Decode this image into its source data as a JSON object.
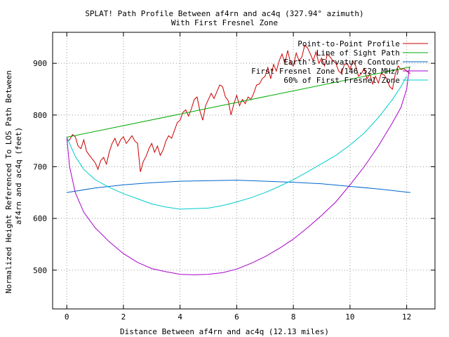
{
  "chart_data": {
    "type": "line",
    "title": "SPLAT! Path Profile Between af4rn and ac4q (327.94° azimuth)",
    "subtitle": "With First Fresnel Zone",
    "xlabel": "Distance Between af4rn and ac4q (12.13 miles)",
    "ylabel_lines": [
      "Normalized Height Referenced To LOS Path Between",
      "af4rn and ac4q (feet)"
    ],
    "xlim": [
      -0.5,
      13
    ],
    "ylim": [
      425,
      960
    ],
    "xticks": [
      0,
      2,
      4,
      6,
      8,
      10,
      12
    ],
    "yticks": [
      500,
      600,
      700,
      800,
      900
    ],
    "grid": true,
    "legend_position": "top-right",
    "series": [
      {
        "name": "Point-to-Point Profile",
        "color": "#cc0000",
        "x": [
          0.0,
          0.1,
          0.2,
          0.3,
          0.4,
          0.5,
          0.6,
          0.7,
          0.8,
          0.9,
          1.0,
          1.1,
          1.2,
          1.3,
          1.4,
          1.5,
          1.6,
          1.7,
          1.8,
          1.9,
          2.0,
          2.1,
          2.2,
          2.3,
          2.4,
          2.5,
          2.6,
          2.7,
          2.8,
          2.9,
          3.0,
          3.1,
          3.2,
          3.3,
          3.4,
          3.5,
          3.6,
          3.7,
          3.8,
          3.9,
          4.0,
          4.1,
          4.2,
          4.3,
          4.4,
          4.5,
          4.6,
          4.7,
          4.8,
          4.9,
          5.0,
          5.1,
          5.2,
          5.3,
          5.4,
          5.5,
          5.6,
          5.7,
          5.8,
          5.9,
          6.0,
          6.1,
          6.2,
          6.3,
          6.4,
          6.5,
          6.6,
          6.7,
          6.8,
          6.9,
          7.0,
          7.1,
          7.2,
          7.3,
          7.4,
          7.5,
          7.6,
          7.7,
          7.8,
          7.9,
          8.0,
          8.1,
          8.2,
          8.3,
          8.4,
          8.5,
          8.6,
          8.7,
          8.8,
          8.9,
          9.0,
          9.1,
          9.2,
          9.3,
          9.4,
          9.5,
          9.6,
          9.7,
          9.8,
          9.9,
          10.0,
          10.1,
          10.2,
          10.3,
          10.4,
          10.5,
          10.6,
          10.7,
          10.8,
          10.9,
          11.0,
          11.1,
          11.2,
          11.3,
          11.4,
          11.5,
          11.6,
          11.7,
          11.8,
          11.9,
          12.0,
          12.13
        ],
        "values": [
          750,
          752,
          762,
          758,
          740,
          735,
          752,
          730,
          722,
          715,
          708,
          695,
          712,
          718,
          705,
          728,
          745,
          755,
          740,
          752,
          758,
          745,
          752,
          760,
          750,
          745,
          690,
          710,
          720,
          735,
          745,
          728,
          740,
          722,
          732,
          750,
          760,
          755,
          770,
          785,
          790,
          805,
          810,
          798,
          812,
          830,
          835,
          808,
          790,
          818,
          830,
          842,
          832,
          845,
          858,
          855,
          835,
          828,
          800,
          822,
          838,
          818,
          830,
          822,
          835,
          830,
          842,
          858,
          860,
          870,
          875,
          892,
          870,
          898,
          885,
          905,
          918,
          900,
          925,
          900,
          895,
          920,
          905,
          912,
          935,
          930,
          918,
          905,
          922,
          900,
          910,
          895,
          918,
          912,
          905,
          900,
          885,
          880,
          898,
          900,
          888,
          905,
          895,
          875,
          880,
          890,
          870,
          880,
          860,
          875,
          862,
          880,
          878,
          870,
          855,
          850,
          880,
          895,
          888,
          890,
          885,
          880
        ]
      },
      {
        "name": "Line of Sight Path",
        "color": "#00aa00",
        "x": [
          0,
          12.13
        ],
        "values": [
          757,
          893
        ]
      },
      {
        "name": "Earth's Curvature Contour",
        "color": "#0066cc",
        "x": [
          0,
          1,
          2,
          3,
          4,
          5,
          6,
          7,
          8,
          9,
          10,
          11,
          12.13
        ],
        "values": [
          650,
          659,
          665,
          669,
          672,
          673,
          674,
          672,
          670,
          667,
          662,
          657,
          650
        ]
      },
      {
        "name": "First Fresnel Zone (146.520 MHz)",
        "color": "#aa00cc",
        "x": [
          0,
          0.1,
          0.3,
          0.6,
          1,
          1.5,
          2,
          2.5,
          3,
          3.5,
          4,
          4.5,
          5,
          5.5,
          6,
          6.5,
          7,
          7.5,
          8,
          8.5,
          9,
          9.5,
          10,
          10.5,
          11,
          11.5,
          11.8,
          12.0,
          12.1
        ],
        "values": [
          757,
          700,
          650,
          612,
          582,
          555,
          532,
          515,
          503,
          497,
          492,
          491,
          492,
          495,
          502,
          513,
          526,
          542,
          560,
          582,
          606,
          632,
          665,
          700,
          740,
          785,
          815,
          850,
          893
        ]
      },
      {
        "name": "60% of First Fresnel Zone",
        "color": "#00cccc",
        "x": [
          0,
          0.3,
          0.6,
          1,
          1.5,
          2,
          2.5,
          3,
          3.5,
          4,
          4.5,
          5,
          5.5,
          6,
          6.5,
          7,
          7.5,
          8,
          8.5,
          9,
          9.5,
          10,
          10.5,
          11,
          11.5,
          11.8,
          12.0
        ],
        "values": [
          757,
          720,
          695,
          675,
          660,
          648,
          638,
          628,
          622,
          618,
          619,
          620,
          625,
          632,
          640,
          650,
          662,
          675,
          690,
          706,
          722,
          742,
          765,
          795,
          830,
          855,
          875
        ]
      }
    ]
  }
}
